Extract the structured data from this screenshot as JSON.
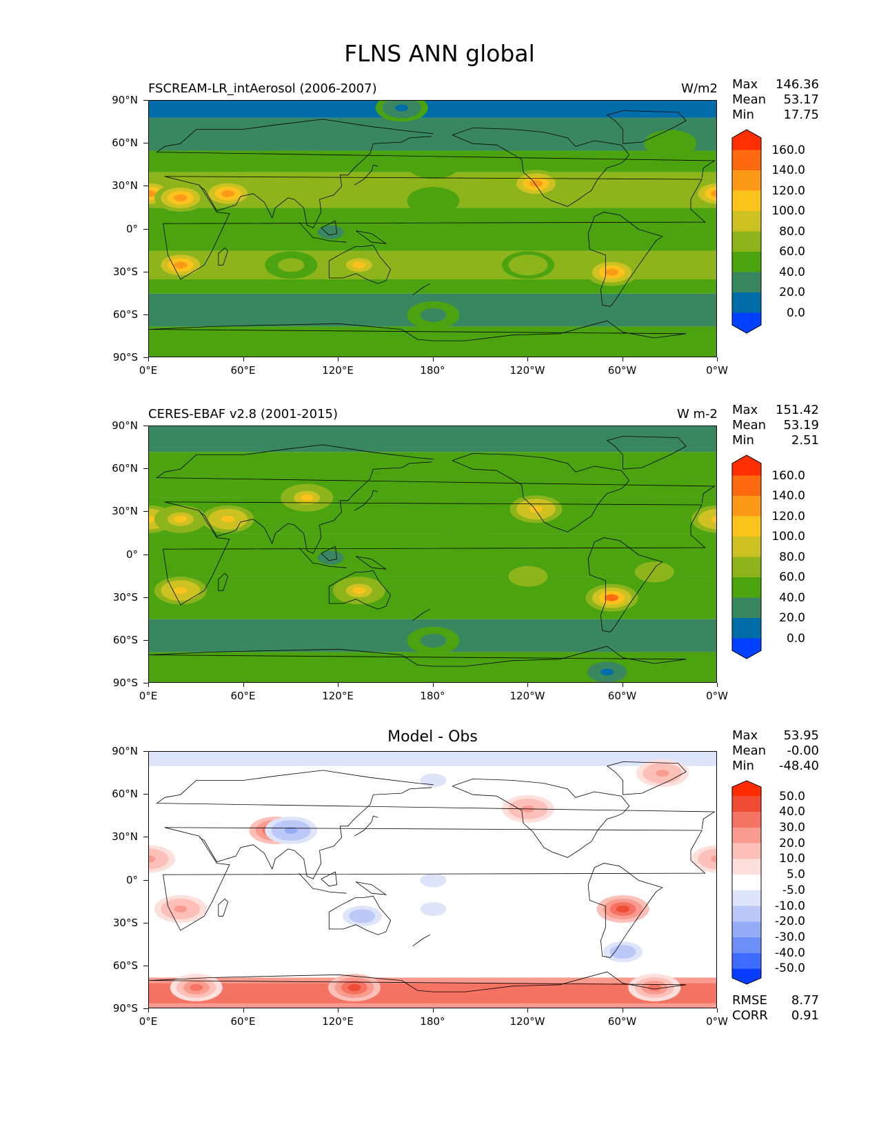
{
  "title": "FLNS ANN global",
  "colors": {
    "seq": [
      "#0040ff",
      "#006da8",
      "#398760",
      "#4ba30f",
      "#8db51b",
      "#cdc222",
      "#fbc31b",
      "#fc9a18",
      "#fe6a10",
      "#ff2e00"
    ],
    "div": [
      "#0a3cff",
      "#3d6cff",
      "#6d8ff8",
      "#94acf6",
      "#bcc8f8",
      "#dee5fb",
      "#ffffff",
      "#fde0dc",
      "#fcc0b8",
      "#f99b8f",
      "#f57363",
      "#ef4b35",
      "#fe2c00"
    ],
    "coast": "#000000"
  },
  "ticks": {
    "lat": [
      "90°N",
      "60°N",
      "30°N",
      "0°",
      "30°S",
      "60°S",
      "90°S"
    ],
    "lon": [
      "0°E",
      "60°E",
      "120°E",
      "180°",
      "120°W",
      "60°W",
      "0°W"
    ]
  },
  "panels": [
    {
      "title_left": "FSCREAM-LR_intAerosol (2006-2007)",
      "title_right": "W/m2",
      "title_center": "",
      "stats": [
        {
          "label": "Max",
          "value": "146.36"
        },
        {
          "label": "Mean",
          "value": "53.17"
        },
        {
          "label": "Min",
          "value": "17.75"
        }
      ],
      "colorbar": [
        "160.0",
        "140.0",
        "120.0",
        "100.0",
        "80.0",
        "60.0",
        "40.0",
        "20.0",
        "0.0"
      ],
      "scheme": "seq",
      "footer": []
    },
    {
      "title_left": "CERES-EBAF v2.8 (2001-2015)",
      "title_right": "W m-2",
      "title_center": "",
      "stats": [
        {
          "label": "Max",
          "value": "151.42"
        },
        {
          "label": "Mean",
          "value": "53.19"
        },
        {
          "label": "Min",
          "value": "2.51"
        }
      ],
      "colorbar": [
        "160.0",
        "140.0",
        "120.0",
        "100.0",
        "80.0",
        "60.0",
        "40.0",
        "20.0",
        "0.0"
      ],
      "scheme": "seq",
      "footer": []
    },
    {
      "title_left": "",
      "title_right": "",
      "title_center": "Model - Obs",
      "stats": [
        {
          "label": "Max",
          "value": "53.95"
        },
        {
          "label": "Mean",
          "value": "-0.00"
        },
        {
          "label": "Min",
          "value": "-48.40"
        }
      ],
      "colorbar": [
        "50.0",
        "40.0",
        "30.0",
        "20.0",
        "10.0",
        "5.0",
        "-5.0",
        "-10.0",
        "-20.0",
        "-30.0",
        "-40.0",
        "-50.0"
      ],
      "scheme": "div",
      "footer": [
        {
          "label": "RMSE",
          "value": "8.77"
        },
        {
          "label": "CORR",
          "value": "0.91"
        }
      ]
    }
  ],
  "chart_data": [
    {
      "type": "heatmap",
      "title": "FSCREAM-LR_intAerosol (2006-2007)",
      "units": "W/m2",
      "variable": "FLNS",
      "season": "ANN",
      "x_ticks": [
        "0°E",
        "60°E",
        "120°E",
        "180°",
        "120°W",
        "60°W",
        "0°W"
      ],
      "y_ticks": [
        "90°N",
        "60°N",
        "30°N",
        "0°",
        "30°S",
        "60°S",
        "90°S"
      ],
      "xlim": [
        0,
        360
      ],
      "ylim": [
        -90,
        90
      ],
      "levels": [
        0,
        20,
        40,
        60,
        80,
        100,
        120,
        140,
        160
      ],
      "max": 146.36,
      "mean": 53.17,
      "min": 17.75,
      "regions": [
        {
          "lon": 0,
          "lat": 25,
          "value": 135
        },
        {
          "lon": 20,
          "lat": 22,
          "value": 130
        },
        {
          "lon": 50,
          "lat": 25,
          "value": 125
        },
        {
          "lon": 20,
          "lat": -25,
          "value": 120
        },
        {
          "lon": 133,
          "lat": -25,
          "value": 100
        },
        {
          "lon": 245,
          "lat": 32,
          "value": 125
        },
        {
          "lon": 293,
          "lat": -30,
          "value": 135
        },
        {
          "lon": 115,
          "lat": -2,
          "value": 35
        },
        {
          "lon": 180,
          "lat": -2,
          "value": 45
        },
        {
          "lon": 180,
          "lat": 45,
          "value": 40
        },
        {
          "lon": 180,
          "lat": -60,
          "value": 35
        },
        {
          "lon": 160,
          "lat": 85,
          "value": 15
        },
        {
          "lon": 180,
          "lat": 20,
          "value": 55
        },
        {
          "lon": 240,
          "lat": -25,
          "value": 70
        },
        {
          "lon": 90,
          "lat": -25,
          "value": 65
        },
        {
          "lon": 330,
          "lat": 60,
          "value": 45
        }
      ]
    },
    {
      "type": "heatmap",
      "title": "CERES-EBAF v2.8 (2001-2015)",
      "units": "W m-2",
      "variable": "FLNS",
      "season": "ANN",
      "x_ticks": [
        "0°E",
        "60°E",
        "120°E",
        "180°",
        "120°W",
        "60°W",
        "0°W"
      ],
      "y_ticks": [
        "90°N",
        "60°N",
        "30°N",
        "0°",
        "30°S",
        "60°S",
        "90°S"
      ],
      "xlim": [
        0,
        360
      ],
      "ylim": [
        -90,
        90
      ],
      "levels": [
        0,
        20,
        40,
        60,
        80,
        100,
        120,
        140,
        160
      ],
      "max": 151.42,
      "mean": 53.19,
      "min": 2.51,
      "regions": [
        {
          "lon": 0,
          "lat": 25,
          "value": 110
        },
        {
          "lon": 20,
          "lat": 25,
          "value": 105
        },
        {
          "lon": 50,
          "lat": 25,
          "value": 115
        },
        {
          "lon": 100,
          "lat": 40,
          "value": 100
        },
        {
          "lon": 20,
          "lat": -25,
          "value": 110
        },
        {
          "lon": 133,
          "lat": -25,
          "value": 105
        },
        {
          "lon": 245,
          "lat": 32,
          "value": 110
        },
        {
          "lon": 293,
          "lat": -30,
          "value": 140
        },
        {
          "lon": 115,
          "lat": -2,
          "value": 35
        },
        {
          "lon": 180,
          "lat": 45,
          "value": 45
        },
        {
          "lon": 180,
          "lat": -60,
          "value": 35
        },
        {
          "lon": 290,
          "lat": -82,
          "value": 15
        },
        {
          "lon": 200,
          "lat": 20,
          "value": 55
        },
        {
          "lon": 240,
          "lat": -15,
          "value": 75
        },
        {
          "lon": 320,
          "lat": -12,
          "value": 70
        },
        {
          "lon": 330,
          "lat": 60,
          "value": 40
        }
      ]
    },
    {
      "type": "heatmap",
      "title": "Model - Obs",
      "units": "",
      "variable": "FLNS",
      "season": "ANN",
      "x_ticks": [
        "0°E",
        "60°E",
        "120°E",
        "180°",
        "120°W",
        "60°W",
        "0°W"
      ],
      "y_ticks": [
        "90°N",
        "60°N",
        "30°N",
        "0°",
        "30°S",
        "60°S",
        "90°S"
      ],
      "xlim": [
        0,
        360
      ],
      "ylim": [
        -90,
        90
      ],
      "levels": [
        -50,
        -40,
        -30,
        -20,
        -10,
        -5,
        5,
        10,
        20,
        30,
        40,
        50
      ],
      "max": 53.95,
      "mean": -0.0,
      "min": -48.4,
      "rmse": 8.77,
      "corr": 0.91,
      "regions": [
        {
          "lon": 30,
          "lat": -75,
          "value": 35
        },
        {
          "lon": 130,
          "lat": -75,
          "value": 40
        },
        {
          "lon": 320,
          "lat": -75,
          "value": 35
        },
        {
          "lon": 300,
          "lat": -20,
          "value": 40
        },
        {
          "lon": 80,
          "lat": 35,
          "value": 40
        },
        {
          "lon": 20,
          "lat": -20,
          "value": 25
        },
        {
          "lon": 325,
          "lat": 75,
          "value": 25
        },
        {
          "lon": 240,
          "lat": 50,
          "value": 20
        },
        {
          "lon": 0,
          "lat": 15,
          "value": 25
        },
        {
          "lon": 135,
          "lat": -25,
          "value": -15
        },
        {
          "lon": 90,
          "lat": 35,
          "value": -25
        },
        {
          "lon": 180,
          "lat": 0,
          "value": -8
        },
        {
          "lon": 180,
          "lat": -20,
          "value": -8
        },
        {
          "lon": 180,
          "lat": 70,
          "value": -8
        },
        {
          "lon": 300,
          "lat": -50,
          "value": -20
        }
      ]
    }
  ]
}
